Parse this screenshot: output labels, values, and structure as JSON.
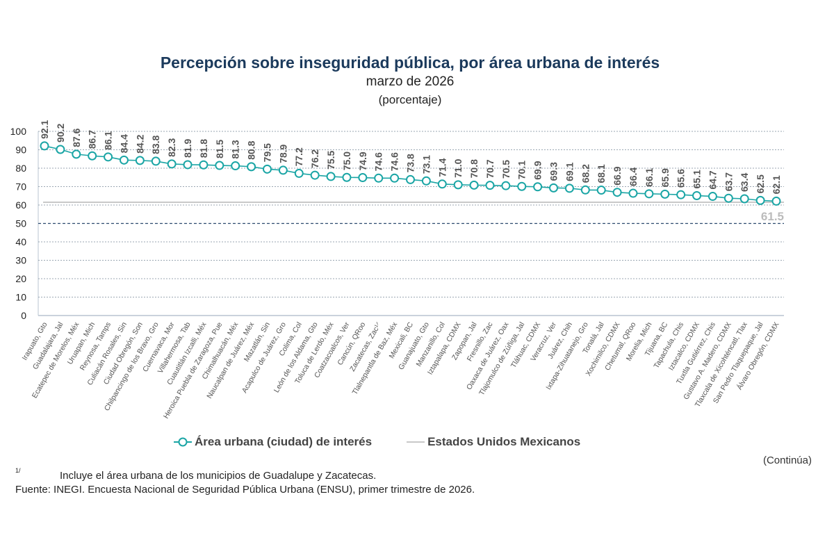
{
  "chart_data": {
    "type": "line",
    "title": "Percepción sobre inseguridad pública, por área urbana de interés",
    "subtitle": "marzo de 2026",
    "unit": "(porcentaje)",
    "ylim": [
      0,
      100
    ],
    "yticks": [
      0,
      10,
      20,
      30,
      40,
      50,
      60,
      70,
      80,
      90,
      100
    ],
    "grid": true,
    "reference_line_dashed": 50,
    "categories": [
      "Irapuato, Gto",
      "Guadalajara, Jal",
      "Ecatepec de Morelos, Méx",
      "Uruapan, Mich",
      "Reynosa, Tamps",
      "Culiacán Rosales, Sin",
      "Ciudad Obregón, Son",
      "Chilpancingo de los Bravo, Gro",
      "Cuernavaca, Mor",
      "Villahermosa, Tab",
      "Cuautitlán Izcalli, Méx",
      "Heroica Puebla de Zaragoza, Pue",
      "Chimalhuacán, Méx",
      "Naucalpan de Juárez, Méx",
      "Mazatlán, Sin",
      "Acapulco de Juárez, Gro",
      "Colima, Col",
      "León de los Aldama, Gto",
      "Toluca de Lerdo, Méx",
      "Coatzacoalcos, Ver",
      "Cancún, QRoo",
      "Zacatecas, Zac¹ᐟ",
      "Tlalnepantla de Baz, Méx",
      "Mexicali, BC",
      "Guanajuato, Gto",
      "Manzanillo, Col",
      "Iztapalapa, CDMX",
      "Zapopan, Jal",
      "Fresnillo, Zac",
      "Oaxaca de Juárez, Oax",
      "Tlajomulco de Zúñiga, Jal",
      "Tláhuac, CDMX",
      "Veracruz, Ver",
      "Juárez, Chih",
      "Ixtapa-Zihuatanejo, Gro",
      "Tonalá, Jal",
      "Xochimilco, CDMX",
      "Chetumal, QRoo",
      "Morelia, Mich",
      "Tijuana, BC",
      "Tapachula, Chis",
      "Iztacalco, CDMX",
      "Tuxtla Gutiérrez, Chis",
      "Gustavo A. Madero, CDMX",
      "Tlaxcala de Xicohténcatl, Tlax",
      "San Pedro Tlaquepaque, Jal",
      "Álvaro Obregón, CDMX"
    ],
    "series": [
      {
        "name": "Área urbana (ciudad) de interés",
        "color": "#1aa5a5",
        "values": [
          92.1,
          90.2,
          87.6,
          86.7,
          86.1,
          84.4,
          84.2,
          83.8,
          82.3,
          81.9,
          81.8,
          81.5,
          81.3,
          80.8,
          79.5,
          78.9,
          77.2,
          76.2,
          75.5,
          75.0,
          74.9,
          74.6,
          74.6,
          73.8,
          73.1,
          71.4,
          71.0,
          70.8,
          70.7,
          70.5,
          70.1,
          69.9,
          69.3,
          69.1,
          68.2,
          68.1,
          66.9,
          66.4,
          66.1,
          65.9,
          65.6,
          65.1,
          64.7,
          63.7,
          63.4,
          62.5,
          62.1
        ]
      },
      {
        "name": "Estados Unidos Mexicanos",
        "color": "#c8c8c8",
        "value": 61.5,
        "label": "61.5"
      }
    ]
  },
  "footer": {
    "continua": "(Continúa)",
    "note_mark": "1/",
    "note": "Incluye el área urbana de los municipios de Guadalupe y Zacatecas.",
    "source": "Fuente: INEGI. Encuesta Nacional de Seguridad Pública Urbana (ENSU), primer trimestre de 2026."
  }
}
